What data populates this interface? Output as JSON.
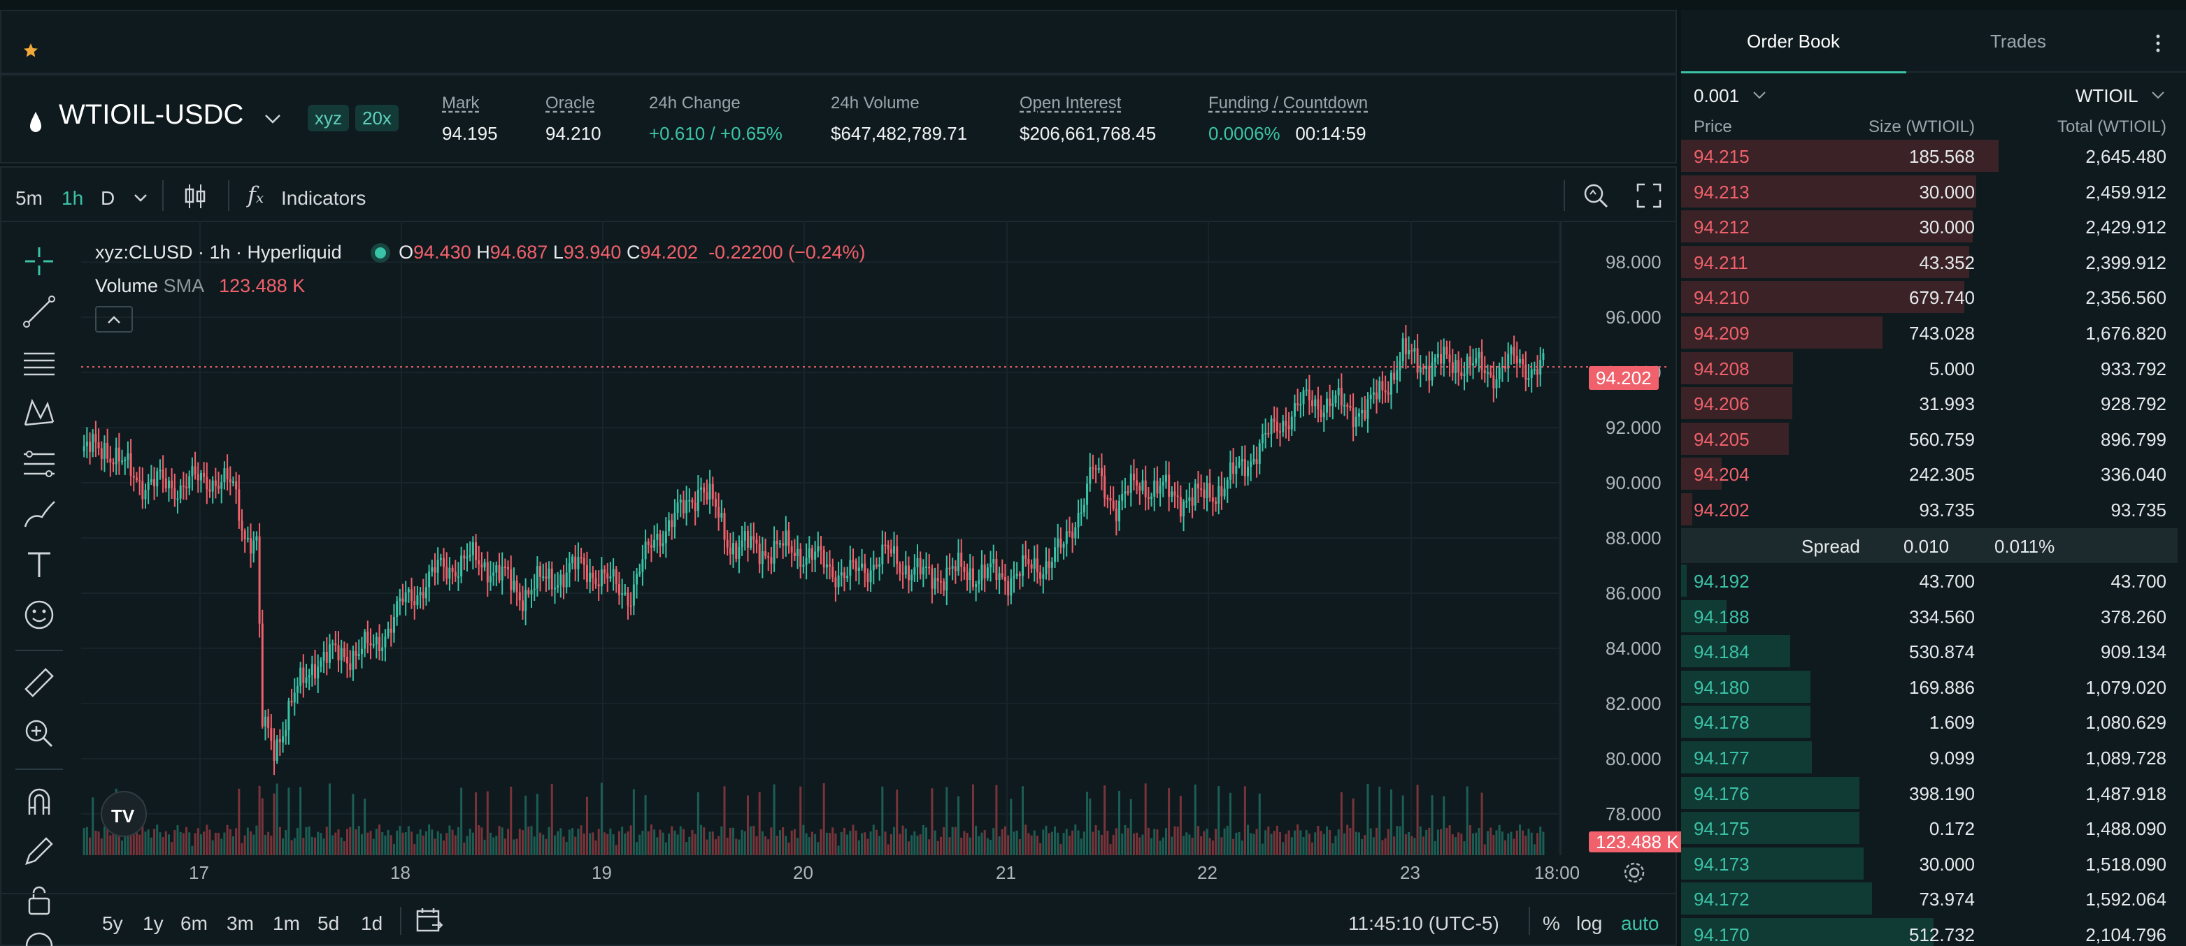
{
  "market": {
    "symbol": "WTIOIL-USDC",
    "dex_badge": "xyz",
    "leverage_badge": "20x",
    "stats": [
      {
        "label": "Mark",
        "value": "94.195",
        "underline": true
      },
      {
        "label": "Oracle",
        "value": "94.210",
        "underline": true
      },
      {
        "label": "24h Change",
        "value": "+0.610 / +0.65%",
        "underline": false,
        "color": "green"
      },
      {
        "label": "24h Volume",
        "value": "$647,482,789.71",
        "underline": false
      },
      {
        "label": "Open Interest",
        "value": "$206,661,768.45",
        "underline": true
      },
      {
        "label": "Funding / Countdown",
        "value": "0.0006%",
        "value2": "00:14:59",
        "underline": true
      }
    ]
  },
  "chart_toolbar": {
    "timeframes": [
      "5m",
      "1h",
      "D"
    ],
    "active_timeframe": "1h",
    "indicators_label": "Indicators"
  },
  "legend": {
    "title": "xyz:CLUSD · 1h · Hyperliquid",
    "o": "94.430",
    "h": "94.687",
    "l": "93.940",
    "c": "94.202",
    "change": "-0.22200 (−0.24%)",
    "volume_label": "Volume",
    "sma_label": "SMA",
    "volume_value": "123.488 K"
  },
  "price_axis": [
    "98.000",
    "96.000",
    "94.000",
    "92.000",
    "90.000",
    "88.000",
    "86.000",
    "84.000",
    "82.000",
    "80.000",
    "78.000"
  ],
  "last_price_tag": "94.202",
  "volume_tag": "123.488 K",
  "time_axis": [
    "17",
    "18",
    "19",
    "20",
    "21",
    "22",
    "23",
    "18:00"
  ],
  "ranges": [
    "5y",
    "1y",
    "6m",
    "3m",
    "1m",
    "5d",
    "1d"
  ],
  "clock": "11:45:10 (UTC-5)",
  "scale_options": [
    "%",
    "log",
    "auto"
  ],
  "orderbook": {
    "tabs": [
      "Order Book",
      "Trades"
    ],
    "tick": "0.001",
    "unit": "WTIOIL",
    "headers": [
      "Price",
      "Size (WTIOIL)",
      "Total (WTIOIL)"
    ],
    "asks": [
      {
        "price": "94.215",
        "size": "185.568",
        "total": "2,645.480",
        "depth": 1.0
      },
      {
        "price": "94.213",
        "size": "30.000",
        "total": "2,459.912",
        "depth": 0.93
      },
      {
        "price": "94.212",
        "size": "30.000",
        "total": "2,429.912",
        "depth": 0.918
      },
      {
        "price": "94.211",
        "size": "43.352",
        "total": "2,399.912",
        "depth": 0.907
      },
      {
        "price": "94.210",
        "size": "679.740",
        "total": "2,356.560",
        "depth": 0.891
      },
      {
        "price": "94.209",
        "size": "743.028",
        "total": "1,676.820",
        "depth": 0.634
      },
      {
        "price": "94.208",
        "size": "5.000",
        "total": "933.792",
        "depth": 0.353
      },
      {
        "price": "94.206",
        "size": "31.993",
        "total": "928.792",
        "depth": 0.351
      },
      {
        "price": "94.205",
        "size": "560.759",
        "total": "896.799",
        "depth": 0.339
      },
      {
        "price": "94.204",
        "size": "242.305",
        "total": "336.040",
        "depth": 0.127
      },
      {
        "price": "94.202",
        "size": "93.735",
        "total": "93.735",
        "depth": 0.035
      }
    ],
    "spread_label": "Spread",
    "spread_value": "0.010",
    "spread_pct": "0.011%",
    "bids": [
      {
        "price": "94.192",
        "size": "43.700",
        "total": "43.700",
        "depth": 0.017
      },
      {
        "price": "94.188",
        "size": "334.560",
        "total": "378.260",
        "depth": 0.143
      },
      {
        "price": "94.184",
        "size": "530.874",
        "total": "909.134",
        "depth": 0.344
      },
      {
        "price": "94.180",
        "size": "169.886",
        "total": "1,079.020",
        "depth": 0.408
      },
      {
        "price": "94.178",
        "size": "1.609",
        "total": "1,080.629",
        "depth": 0.408
      },
      {
        "price": "94.177",
        "size": "9.099",
        "total": "1,089.728",
        "depth": 0.412
      },
      {
        "price": "94.176",
        "size": "398.190",
        "total": "1,487.918",
        "depth": 0.562
      },
      {
        "price": "94.175",
        "size": "0.172",
        "total": "1,488.090",
        "depth": 0.562
      },
      {
        "price": "94.173",
        "size": "30.000",
        "total": "1,518.090",
        "depth": 0.574
      },
      {
        "price": "94.172",
        "size": "73.974",
        "total": "1,592.064",
        "depth": 0.602
      },
      {
        "price": "94.170",
        "size": "512.732",
        "total": "2,104.796",
        "depth": 0.795
      }
    ]
  },
  "colors": {
    "up": "#3bc3a7",
    "down": "#f0616b",
    "accent": "#3bc3a7"
  }
}
